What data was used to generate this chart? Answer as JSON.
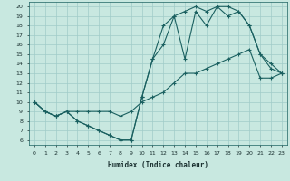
{
  "xlabel": "Humidex (Indice chaleur)",
  "bg_color": "#c8e8e0",
  "line_color": "#1a6060",
  "grid_color": "#a0ccc8",
  "xlim": [
    -0.5,
    23.5
  ],
  "ylim": [
    5.5,
    20.5
  ],
  "xticks": [
    0,
    1,
    2,
    3,
    4,
    5,
    6,
    7,
    8,
    9,
    10,
    11,
    12,
    13,
    14,
    15,
    16,
    17,
    18,
    19,
    20,
    21,
    22,
    23
  ],
  "yticks": [
    6,
    7,
    8,
    9,
    10,
    11,
    12,
    13,
    14,
    15,
    16,
    17,
    18,
    19,
    20
  ],
  "line1_x": [
    0,
    1,
    2,
    3,
    4,
    5,
    6,
    7,
    8,
    9,
    10,
    11,
    12,
    13,
    14,
    15,
    16,
    17,
    18,
    19,
    20,
    21,
    22,
    23
  ],
  "line1_y": [
    10,
    9,
    8.5,
    9,
    8,
    7.5,
    7,
    6.5,
    6,
    6,
    10.5,
    14.5,
    16,
    19,
    14.5,
    19.5,
    18,
    20,
    20,
    19.5,
    18,
    15,
    13.5,
    13
  ],
  "line2_x": [
    0,
    1,
    2,
    3,
    4,
    5,
    6,
    7,
    8,
    9,
    10,
    11,
    12,
    13,
    14,
    15,
    16,
    17,
    18,
    19,
    20,
    21,
    22,
    23
  ],
  "line2_y": [
    10,
    9,
    8.5,
    9,
    9,
    9,
    9,
    9,
    8.5,
    9,
    10,
    10.5,
    11,
    12,
    13,
    13,
    13.5,
    14,
    14.5,
    15,
    15.5,
    12.5,
    12.5,
    13
  ],
  "line3_x": [
    0,
    1,
    2,
    3,
    4,
    5,
    6,
    7,
    8,
    9,
    10,
    11,
    12,
    13,
    14,
    15,
    16,
    17,
    18,
    19,
    20,
    21,
    22,
    23
  ],
  "line3_y": [
    10,
    9,
    8.5,
    9,
    8,
    7.5,
    7,
    6.5,
    6,
    6,
    10.5,
    14.5,
    18,
    19,
    19.5,
    20,
    19.5,
    20,
    19,
    19.5,
    18,
    15,
    14,
    13
  ]
}
